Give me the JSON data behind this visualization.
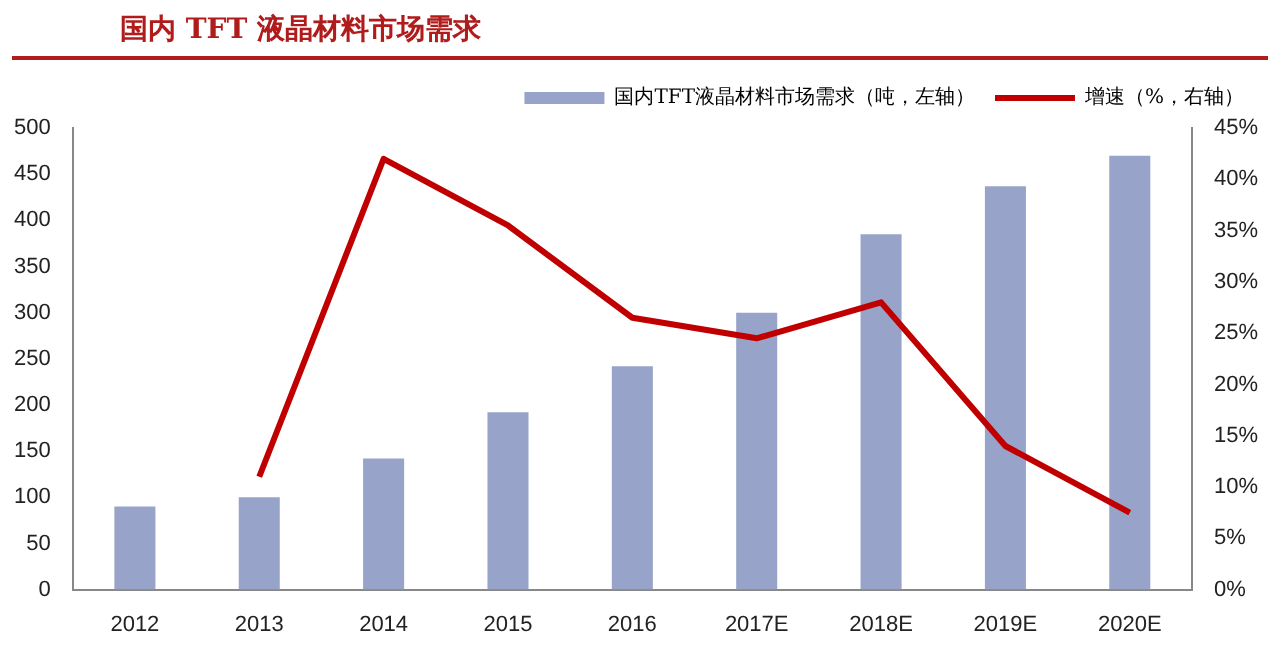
{
  "chart_data": {
    "type": "bar",
    "title": "国内 TFT 液晶材料市场需求",
    "categories": [
      "2012",
      "2013",
      "2014",
      "2015",
      "2016",
      "2017E",
      "2018E",
      "2019E",
      "2020E"
    ],
    "series": [
      {
        "name": "国内TFT液晶材料市场需求（吨，左轴）",
        "color": "#97a3c9",
        "values": [
          90,
          100,
          142,
          192,
          242,
          300,
          385,
          437,
          470
        ]
      },
      {
        "name": "增速（%，右轴）",
        "type": "line",
        "axis": "y2",
        "color": "#c00000",
        "values": [
          null,
          11,
          42,
          35.5,
          26.5,
          24.5,
          28,
          14,
          7.5
        ]
      }
    ],
    "ylim": [
      0,
      500
    ],
    "yticks": [
      0,
      50,
      100,
      150,
      200,
      250,
      300,
      350,
      400,
      450,
      500
    ],
    "y2lim": [
      0,
      45
    ],
    "y2ticks": [
      {
        "value": 0,
        "label": "0%"
      },
      {
        "value": 5,
        "label": "5%"
      },
      {
        "value": 10,
        "label": "10%"
      },
      {
        "value": 15,
        "label": "15%"
      },
      {
        "value": 20,
        "label": "20%"
      },
      {
        "value": 25,
        "label": "25%"
      },
      {
        "value": 30,
        "label": "30%"
      },
      {
        "value": 35,
        "label": "35%"
      },
      {
        "value": 40,
        "label": "40%"
      },
      {
        "value": 45,
        "label": "45%"
      }
    ],
    "grid": false,
    "legend": "top",
    "marker": "none"
  }
}
